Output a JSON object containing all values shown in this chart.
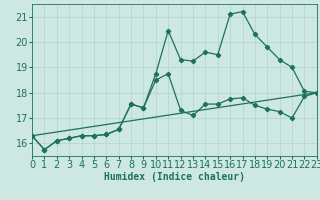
{
  "xlabel": "Humidex (Indice chaleur)",
  "xlim": [
    0,
    23
  ],
  "ylim": [
    15.5,
    21.5
  ],
  "yticks": [
    16,
    17,
    18,
    19,
    20,
    21
  ],
  "xticks": [
    0,
    1,
    2,
    3,
    4,
    5,
    6,
    7,
    8,
    9,
    10,
    11,
    12,
    13,
    14,
    15,
    16,
    17,
    18,
    19,
    20,
    21,
    22,
    23
  ],
  "bg_color": "#cde8e2",
  "grid_color": "#b0d4cc",
  "line_color": "#1e7060",
  "series1_x": [
    0,
    1,
    2,
    3,
    4,
    5,
    6,
    7,
    8,
    9,
    10,
    11,
    12,
    13,
    14,
    15,
    16,
    17,
    18,
    19,
    20,
    21,
    22,
    23
  ],
  "series1_y": [
    16.3,
    15.75,
    16.1,
    16.2,
    16.3,
    16.3,
    16.35,
    16.55,
    17.55,
    17.4,
    18.75,
    20.45,
    19.3,
    19.25,
    19.6,
    19.5,
    21.1,
    21.2,
    20.3,
    19.8,
    19.3,
    19.0,
    18.05,
    18.0
  ],
  "series2_x": [
    0,
    1,
    2,
    3,
    4,
    5,
    6,
    7,
    8,
    9,
    10,
    11,
    12,
    13,
    14,
    15,
    16,
    17,
    18,
    19,
    20,
    21,
    22,
    23
  ],
  "series2_y": [
    16.3,
    15.75,
    16.1,
    16.2,
    16.3,
    16.3,
    16.35,
    16.55,
    17.55,
    17.4,
    18.5,
    18.75,
    17.3,
    17.1,
    17.55,
    17.55,
    17.75,
    17.8,
    17.5,
    17.35,
    17.25,
    17.0,
    17.85,
    18.0
  ],
  "series3_x": [
    0,
    23
  ],
  "series3_y": [
    16.3,
    18.0
  ],
  "tick_fontsize": 7,
  "xlabel_fontsize": 7
}
